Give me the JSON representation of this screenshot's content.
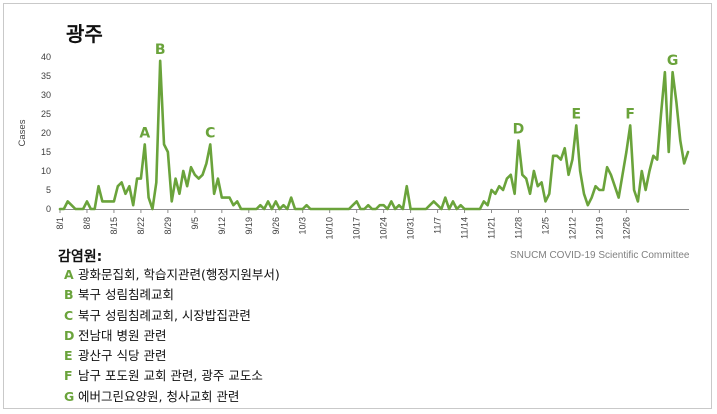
{
  "colors": {
    "line": "#6aa33b",
    "axis": "#8c8c8c",
    "text": "#404040",
    "legend_letter": "#6aa33b"
  },
  "chart_data": {
    "type": "line",
    "title": "광주",
    "ylabel": "Cases",
    "xlabel": "",
    "ylim": [
      0,
      40
    ],
    "yticks": [
      0,
      5,
      10,
      15,
      20,
      25,
      30,
      35,
      40
    ],
    "x_start_date": "2020-08-01",
    "x_tick_labels": [
      "8/1",
      "8/8",
      "8/15",
      "8/22",
      "8/29",
      "9/5",
      "9/12",
      "9/19",
      "9/26",
      "10/3",
      "10/10",
      "10/17",
      "10/24",
      "10/31",
      "11/7",
      "11/14",
      "11/21",
      "11/28",
      "12/5",
      "12/12",
      "12/19",
      "12/26"
    ],
    "grid": false,
    "series": [
      {
        "name": "",
        "values": [
          0,
          0,
          2,
          1,
          0,
          0,
          0,
          2,
          0,
          0,
          6,
          2,
          2,
          2,
          2,
          6,
          7,
          4,
          6,
          1,
          8,
          8,
          17,
          3,
          0,
          7,
          39,
          17,
          15,
          2,
          8,
          4,
          10,
          6,
          11,
          9,
          8,
          9,
          12,
          17,
          4,
          8,
          3,
          3,
          3,
          1,
          2,
          0,
          0,
          0,
          0,
          0,
          1,
          0,
          2,
          0,
          2,
          0,
          1,
          0,
          3,
          0,
          0,
          0,
          1,
          0,
          0,
          0,
          0,
          0,
          0,
          0,
          0,
          0,
          0,
          0,
          1,
          2,
          0,
          0,
          1,
          0,
          0,
          1,
          1,
          0,
          2,
          0,
          1,
          0,
          6,
          0,
          0,
          0,
          0,
          0,
          1,
          2,
          1,
          0,
          3,
          0,
          2,
          0,
          1,
          0,
          0,
          0,
          0,
          0,
          2,
          1,
          5,
          4,
          6,
          5,
          8,
          9,
          4,
          18,
          9,
          8,
          4,
          10,
          6,
          7,
          2,
          4,
          14,
          14,
          13,
          16,
          9,
          13,
          22,
          10,
          4,
          1,
          3,
          6,
          5,
          5,
          11,
          9,
          6,
          3,
          9,
          15,
          22,
          5,
          2,
          10,
          5,
          10,
          14,
          13,
          25,
          36,
          15,
          36,
          28,
          18,
          12,
          15
        ],
        "dates": [
          "8/1"
        ]
      }
    ],
    "annotations": [
      {
        "label": "A",
        "x_index": 22,
        "y": 17
      },
      {
        "label": "B",
        "x_index": 26,
        "y": 39
      },
      {
        "label": "C",
        "x_index": 39,
        "y": 17
      },
      {
        "label": "D",
        "x_index": 119,
        "y": 18
      },
      {
        "label": "E",
        "x_index": 134,
        "y": 22
      },
      {
        "label": "F",
        "x_index": 148,
        "y": 22
      },
      {
        "label": "G",
        "x_index": 159,
        "y": 36
      }
    ]
  },
  "legend": {
    "heading": "감염원:",
    "items": [
      {
        "letter": "A",
        "text": "광화문집회, 학습지관련(행정지원부서)"
      },
      {
        "letter": "B",
        "text": "북구 성림침례교회"
      },
      {
        "letter": "C",
        "text": "북구 성림침례교회, 시장밥집관련"
      },
      {
        "letter": "D",
        "text": "전남대 병원 관련"
      },
      {
        "letter": "E",
        "text": "광산구 식당 관련"
      },
      {
        "letter": "F",
        "text": "남구 포도원 교회 관련, 광주 교도소"
      },
      {
        "letter": "G",
        "text": "에버그린요양원, 청사교회 관련"
      }
    ]
  },
  "credit": "SNUCM COVID-19 Scientific Committee"
}
